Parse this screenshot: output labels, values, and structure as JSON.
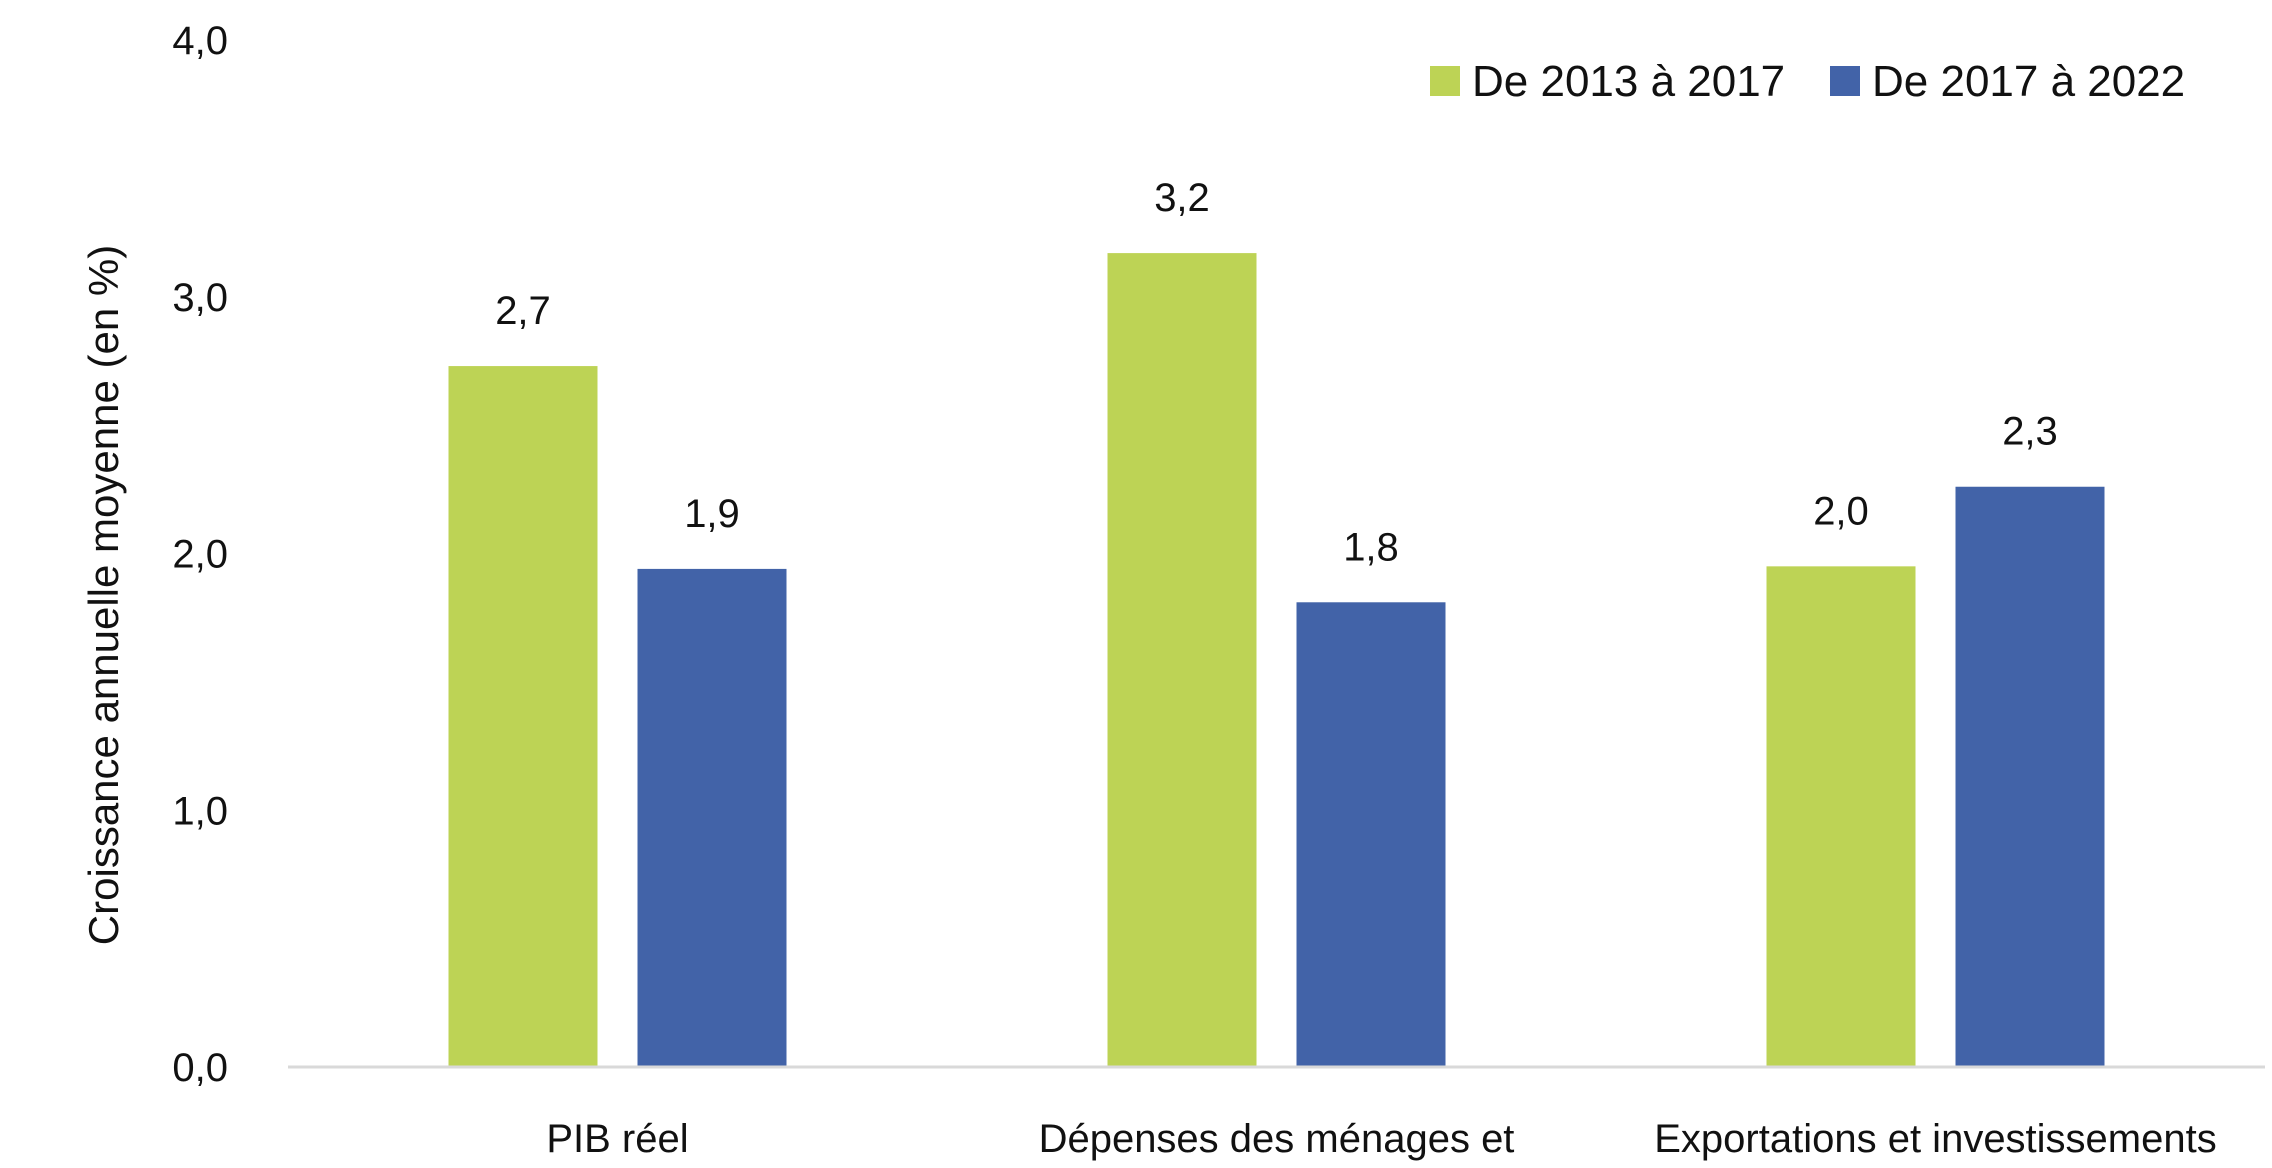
{
  "chart_data": {
    "type": "bar",
    "ylabel": "Croissance annuelle moyenne (en %)",
    "ylim": [
      0,
      4
    ],
    "yticks": [
      "0,0",
      "1,0",
      "2,0",
      "3,0",
      "4,0"
    ],
    "grid": false,
    "legend_position": "top-right",
    "categories": [
      "PIB réel",
      "Dépenses des ménages et",
      "Exportations et investissements"
    ],
    "series": [
      {
        "name": "De 2013 à 2017",
        "color": "#BDD355",
        "values": [
          2.73,
          3.17,
          1.95
        ],
        "labels": [
          "2,7",
          "3,2",
          "2,0"
        ]
      },
      {
        "name": "De 2017 à 2022",
        "color": "#4263A8",
        "values": [
          1.94,
          1.81,
          2.26
        ],
        "labels": [
          "1,9",
          "1,8",
          "2,3"
        ]
      }
    ]
  }
}
